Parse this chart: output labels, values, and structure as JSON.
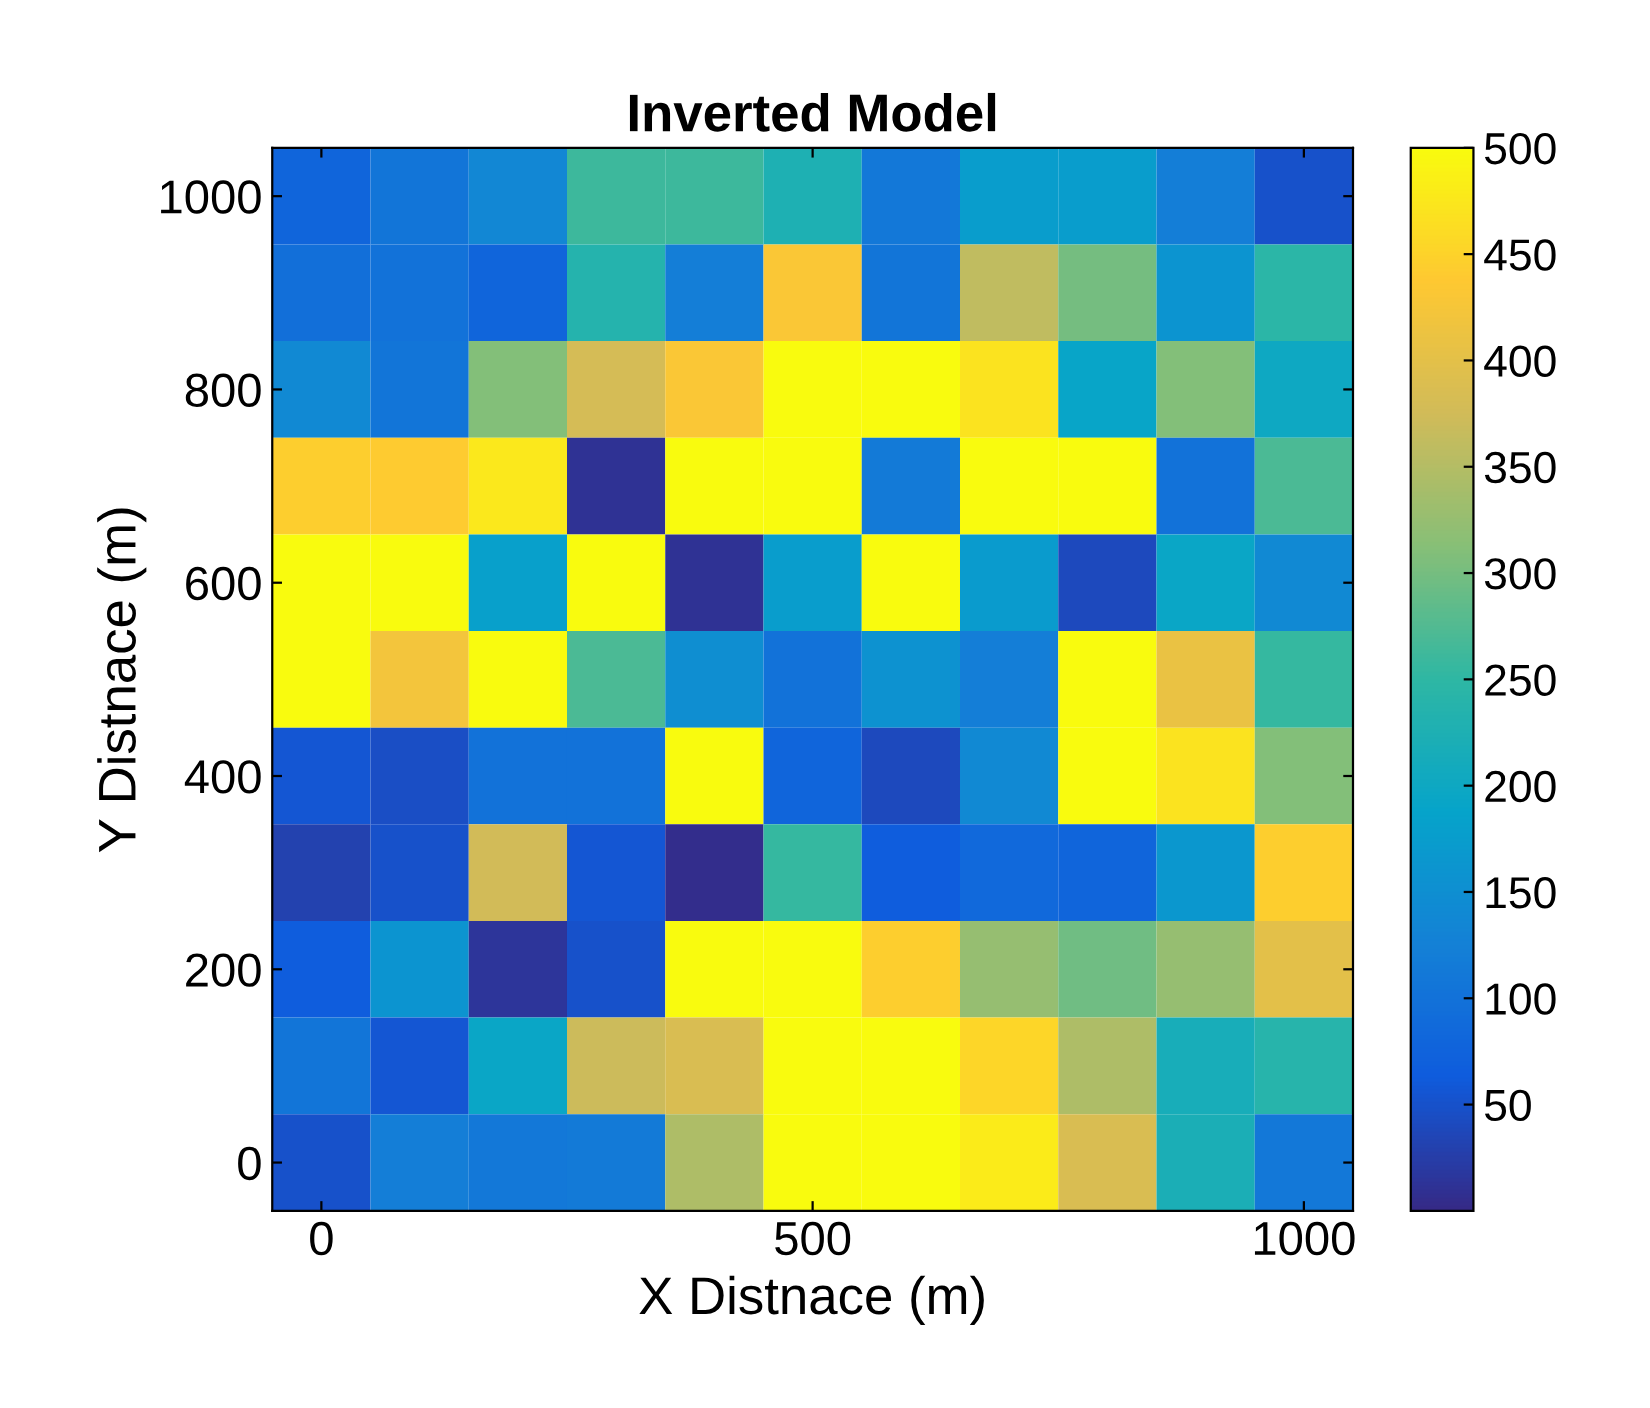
{
  "chart_data": {
    "type": "heatmap",
    "title": "Inverted Model",
    "xlabel": "X Distnace (m)",
    "ylabel": "Y Distnace (m)",
    "x": [
      0,
      100,
      200,
      300,
      400,
      500,
      600,
      700,
      800,
      900,
      1000
    ],
    "y": [
      1000,
      900,
      800,
      700,
      600,
      500,
      400,
      300,
      200,
      100,
      0
    ],
    "xlim": [
      -50,
      1050
    ],
    "ylim": [
      -50,
      1050
    ],
    "xticks": [
      0,
      500,
      1000
    ],
    "yticks": [
      0,
      200,
      400,
      600,
      800,
      1000
    ],
    "clim": [
      0,
      500
    ],
    "cticks": [
      50,
      100,
      150,
      200,
      250,
      300,
      350,
      400,
      450,
      500
    ],
    "cells": [
      [
        80,
        105,
        135,
        260,
        260,
        225,
        110,
        175,
        175,
        120,
        50
      ],
      [
        95,
        100,
        80,
        235,
        120,
        430,
        105,
        360,
        300,
        160,
        245
      ],
      [
        140,
        105,
        310,
        380,
        430,
        500,
        500,
        470,
        190,
        310,
        200
      ],
      [
        445,
        440,
        475,
        10,
        500,
        500,
        115,
        500,
        500,
        100,
        270
      ],
      [
        500,
        500,
        180,
        500,
        10,
        175,
        500,
        170,
        40,
        195,
        140
      ],
      [
        500,
        420,
        500,
        270,
        150,
        100,
        155,
        120,
        500,
        410,
        255
      ],
      [
        55,
        45,
        100,
        100,
        500,
        80,
        40,
        140,
        500,
        470,
        310
      ],
      [
        30,
        50,
        375,
        55,
        5,
        255,
        65,
        85,
        80,
        165,
        445
      ],
      [
        65,
        160,
        15,
        50,
        500,
        500,
        445,
        325,
        295,
        325,
        400
      ],
      [
        105,
        55,
        195,
        370,
        385,
        500,
        500,
        455,
        345,
        215,
        240
      ],
      [
        50,
        120,
        110,
        115,
        345,
        500,
        500,
        480,
        385,
        220,
        110
      ]
    ]
  }
}
